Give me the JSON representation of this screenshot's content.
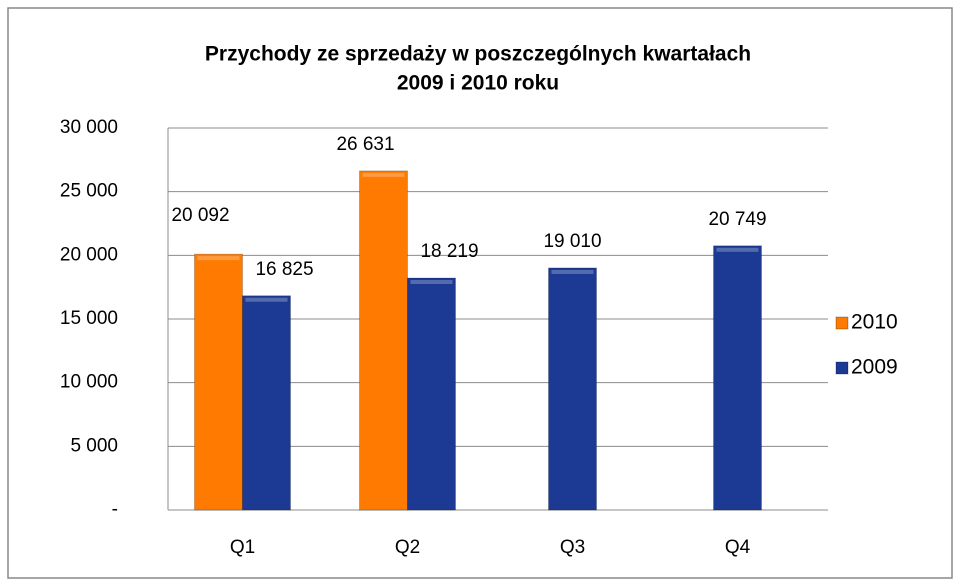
{
  "chart_data": {
    "type": "bar",
    "title": [
      "Przychody ze sprzedaży w poszczególnych kwartałach",
      "2009 i 2010 roku"
    ],
    "categories": [
      "Q1",
      "Q2",
      "Q3",
      "Q4"
    ],
    "series": [
      {
        "name": "2010",
        "color": "#ff7a00",
        "values": [
          20092,
          26631,
          null,
          null
        ],
        "value_labels": [
          "20 092",
          "26 631",
          null,
          null
        ]
      },
      {
        "name": "2009",
        "color": "#1c3a94",
        "values": [
          16825,
          18219,
          19010,
          20749
        ],
        "value_labels": [
          "16 825",
          "18 219",
          "19 010",
          "20 749"
        ]
      }
    ],
    "ylim": [
      0,
      30000
    ],
    "yticks": [
      {
        "value": 0,
        "label": "-"
      },
      {
        "value": 5000,
        "label": "5 000"
      },
      {
        "value": 10000,
        "label": "10 000"
      },
      {
        "value": 15000,
        "label": "15 000"
      },
      {
        "value": 20000,
        "label": "20 000"
      },
      {
        "value": 25000,
        "label": "25 000"
      },
      {
        "value": 30000,
        "label": "30 000"
      }
    ],
    "grid": true,
    "legend": "right"
  }
}
